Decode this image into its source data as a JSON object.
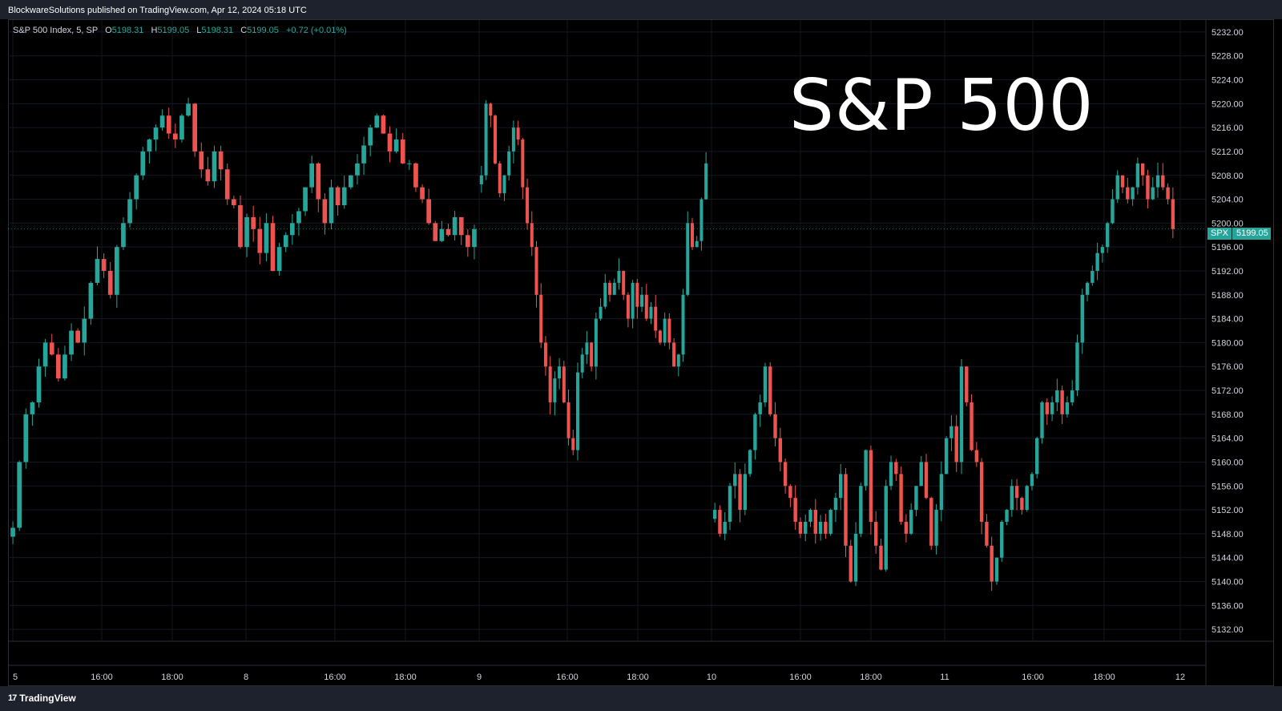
{
  "header": {
    "publisher_line": "BlockwareSolutions published on TradingView.com, Apr 12, 2024 05:18 UTC"
  },
  "legend": {
    "symbol": "S&P 500 Index, 5, SP",
    "o_label": "O",
    "o_value": "5198.31",
    "h_label": "H",
    "h_value": "5199.05",
    "l_label": "L",
    "l_value": "5198.31",
    "c_label": "C",
    "c_value": "5199.05",
    "change": "+0.72 (+0.01%)"
  },
  "overlay_title": "S&P 500",
  "price_tag": {
    "symbol": "SPX",
    "value": "5199.05"
  },
  "footer": {
    "brand": "TradingView",
    "logo_glyph": "17"
  },
  "colors": {
    "up": "#26a69a",
    "down": "#ef5350",
    "background": "#000000",
    "grid": "#1b1f2a"
  },
  "chart_data": {
    "type": "candlestick",
    "title": "S&P 500",
    "ylim": [
      5130,
      5234
    ],
    "yticks": [
      5132,
      5136,
      5140,
      5144,
      5148,
      5152,
      5156,
      5160,
      5164,
      5168,
      5172,
      5176,
      5180,
      5184,
      5188,
      5192,
      5196,
      5200,
      5204,
      5208,
      5212,
      5216,
      5220,
      5224,
      5228,
      5232
    ],
    "ytick_labels": [
      "5132.00",
      "5136.00",
      "5140.00",
      "5144.00",
      "5148.00",
      "5152.00",
      "5156.00",
      "5160.00",
      "5164.00",
      "5168.00",
      "5172.00",
      "5176.00",
      "5180.00",
      "5184.00",
      "5188.00",
      "5192.00",
      "5196.00",
      "5200.00",
      "5204.00",
      "5208.00",
      "5212.00",
      "5216.00",
      "5220.00",
      "5224.00",
      "5228.00",
      "5232.00"
    ],
    "xtick_labels": [
      "5",
      "16:00",
      "18:00",
      "8",
      "16:00",
      "18:00",
      "9",
      "16:00",
      "18:00",
      "10",
      "16:00",
      "18:00",
      "11",
      "16:00",
      "18:00",
      "12"
    ],
    "sessions": [
      {
        "day": "Apr 5",
        "closes": [
          5149,
          5160,
          5168,
          5170,
          5176,
          5180,
          5178,
          5174,
          5178,
          5182,
          5180,
          5184,
          5190,
          5194,
          5192,
          5188,
          5196,
          5200,
          5204,
          5208,
          5212,
          5214,
          5216,
          5218,
          5215,
          5214,
          5218,
          5220,
          5212,
          5209,
          5207,
          5212,
          5209,
          5204,
          5203,
          5196,
          5201,
          5199,
          5195,
          5200,
          5192,
          5196,
          5198,
          5200,
          5202,
          5206,
          5210,
          5204,
          5200,
          5206,
          5203,
          5206,
          5208,
          5210,
          5213,
          5216,
          5218,
          5215,
          5212,
          5214,
          5210,
          5210,
          5206,
          5204,
          5200,
          5197,
          5199,
          5198,
          5201,
          5198,
          5196,
          5199
        ]
      },
      {
        "day": "Apr 8",
        "closes": [
          5208,
          5220,
          5218,
          5210,
          5205,
          5208,
          5212,
          5216,
          5214,
          5206,
          5200,
          5196,
          5188,
          5180,
          5176,
          5170,
          5174,
          5176,
          5170,
          5164,
          5162,
          5175,
          5178,
          5180,
          5176,
          5184,
          5186,
          5190,
          5188,
          5190,
          5192,
          5188,
          5184,
          5190,
          5186,
          5188,
          5184,
          5186,
          5182,
          5180,
          5184,
          5180,
          5176,
          5178,
          5188,
          5200,
          5196,
          5197,
          5204,
          5210
        ]
      },
      {
        "day": "Apr 10",
        "closes": [
          5152,
          5148,
          5150,
          5156,
          5158,
          5152,
          5158,
          5162,
          5168,
          5170,
          5176,
          5168,
          5164,
          5160,
          5156,
          5154,
          5150,
          5148,
          5150,
          5152,
          5148,
          5150,
          5148,
          5152,
          5154,
          5158,
          5146,
          5140,
          5148,
          5156,
          5162,
          5150,
          5146,
          5142,
          5156,
          5160,
          5158,
          5150,
          5148,
          5152,
          5156,
          5160,
          5154,
          5146,
          5152,
          5158,
          5164,
          5166,
          5160,
          5176,
          5170,
          5162,
          5160,
          5150,
          5146,
          5140,
          5144,
          5150,
          5152,
          5156,
          5154,
          5152,
          5156,
          5158,
          5164,
          5170,
          5168,
          5170,
          5172,
          5168,
          5170,
          5172,
          5180,
          5188,
          5190,
          5192,
          5195,
          5196,
          5200,
          5204,
          5208,
          5206,
          5204,
          5206,
          5210,
          5208,
          5204,
          5206,
          5208,
          5206,
          5204,
          5199
        ]
      }
    ]
  }
}
